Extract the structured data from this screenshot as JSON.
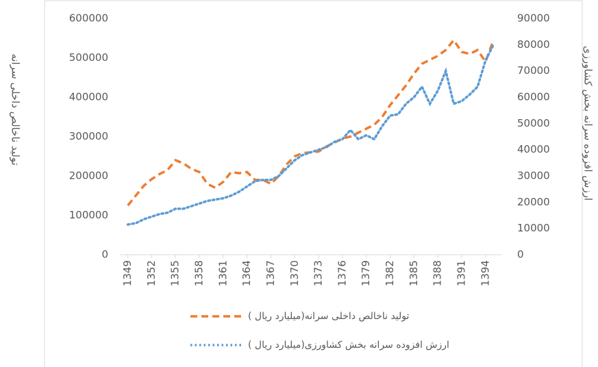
{
  "chart_data": {
    "type": "line",
    "y_label": "تولید ناخالص داخلی سرانه",
    "y2_label": "ارزش افزوده سرانه بخش کشاورزی",
    "x": [
      1349,
      1350,
      1351,
      1352,
      1353,
      1354,
      1355,
      1356,
      1357,
      1358,
      1359,
      1360,
      1361,
      1362,
      1363,
      1364,
      1365,
      1366,
      1367,
      1368,
      1369,
      1370,
      1371,
      1372,
      1373,
      1374,
      1375,
      1376,
      1377,
      1378,
      1379,
      1380,
      1381,
      1382,
      1383,
      1384,
      1385,
      1386,
      1387,
      1388,
      1389,
      1390,
      1391,
      1392,
      1393,
      1394,
      1395
    ],
    "xlim": [
      1348,
      1396
    ],
    "xticks": [
      1349,
      1352,
      1355,
      1358,
      1361,
      1364,
      1367,
      1370,
      1373,
      1376,
      1379,
      1382,
      1385,
      1388,
      1391,
      1394
    ],
    "ylim": [
      0,
      600000
    ],
    "yticks": [
      0,
      100000,
      200000,
      300000,
      400000,
      500000,
      600000
    ],
    "y2lim": [
      0,
      90000
    ],
    "y2ticks": [
      0,
      10000,
      20000,
      30000,
      40000,
      50000,
      60000,
      70000,
      80000,
      90000
    ],
    "legend": "bottom",
    "series": [
      {
        "name": "( میلیارد ریال)تولید ناخالص داخلی سرانه",
        "color": "#ed7d31",
        "dash": "dashed",
        "axis": "y",
        "values": [
          125000,
          150000,
          175000,
          192000,
          205000,
          215000,
          240000,
          232000,
          218000,
          210000,
          180000,
          170000,
          185000,
          210000,
          207000,
          210000,
          190000,
          190000,
          180000,
          200000,
          230000,
          250000,
          258000,
          260000,
          262000,
          275000,
          285000,
          295000,
          300000,
          310000,
          320000,
          330000,
          350000,
          380000,
          405000,
          430000,
          460000,
          485000,
          495000,
          505000,
          520000,
          545000,
          515000,
          510000,
          520000,
          490000,
          545000
        ]
      },
      {
        "name": "( میلیارد ریال)ارزش افزوده سرانه بخش کشاورزی",
        "color": "#5b9bd5",
        "dash": "dotted",
        "axis": "y2",
        "values": [
          11500,
          12000,
          13500,
          14500,
          15500,
          16000,
          17500,
          17500,
          18500,
          19500,
          20500,
          21000,
          21500,
          22500,
          24000,
          26000,
          28000,
          28500,
          28500,
          30000,
          33000,
          36000,
          38000,
          39000,
          40000,
          41000,
          43000,
          44000,
          47500,
          44000,
          45500,
          44000,
          49000,
          53000,
          53500,
          57500,
          60000,
          64000,
          57500,
          62500,
          70000,
          57500,
          58500,
          61000,
          64000,
          74000,
          80000
        ]
      }
    ]
  }
}
